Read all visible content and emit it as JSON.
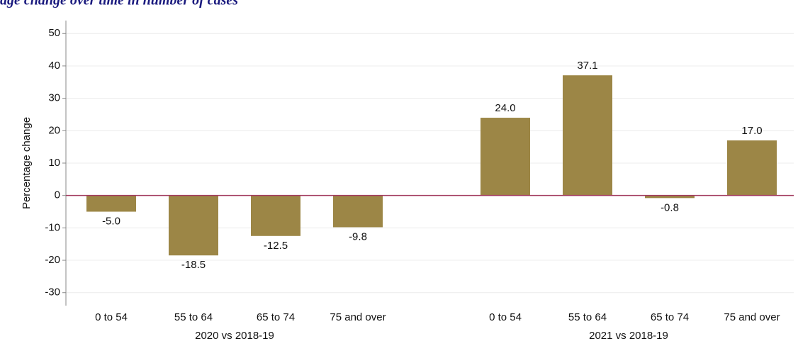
{
  "chart_data": {
    "type": "bar",
    "title": "age change over time in number of cases",
    "y_label": "Percentage change",
    "color": "#9c8646",
    "zero_line_color": "#a23a5e",
    "grid": true,
    "ylim": [
      -34,
      54
    ],
    "yticks": [
      -30,
      -20,
      -10,
      0,
      10,
      20,
      30,
      40,
      50
    ],
    "groups": [
      {
        "name": "2020 vs 2018-19",
        "categories": [
          "0 to 54",
          "55 to 64",
          "65 to 74",
          "75 and over"
        ],
        "values": [
          -5.0,
          -18.5,
          -12.5,
          -9.8
        ],
        "value_labels": [
          "-5.0",
          "-18.5",
          "-12.5",
          "-9.8"
        ]
      },
      {
        "name": "2021 vs 2018-19",
        "categories": [
          "0 to 54",
          "55 to 64",
          "65 to 74",
          "75 and over"
        ],
        "values": [
          24.0,
          37.1,
          -0.8,
          17.0
        ],
        "value_labels": [
          "24.0",
          "37.1",
          "-0.8",
          "17.0"
        ]
      }
    ]
  }
}
